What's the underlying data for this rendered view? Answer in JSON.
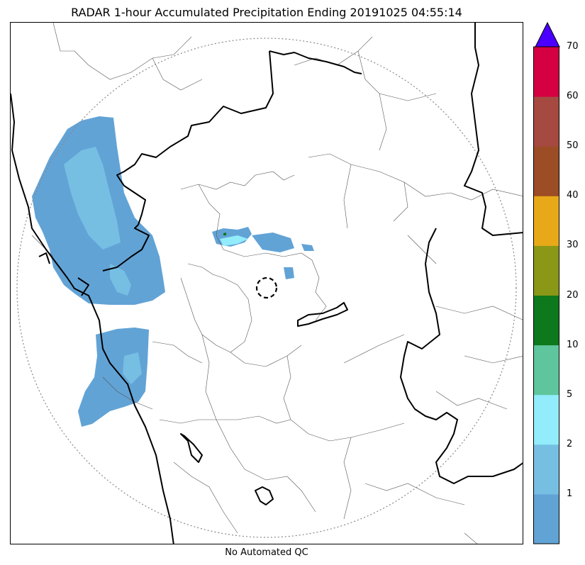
{
  "title": "RADAR 1-hour Accumulated Precipitation Ending 20191025 04:55:14",
  "footer": "No Automated QC",
  "colorbar": {
    "labels": [
      "1",
      "2",
      "5",
      "10",
      "20",
      "30",
      "40",
      "50",
      "60",
      "70"
    ],
    "segments": [
      {
        "range": "0-1",
        "color": "#62a3d6"
      },
      {
        "range": "1-2",
        "color": "#76bfe3"
      },
      {
        "range": "2-5",
        "color": "#92ecfb"
      },
      {
        "range": "5-10",
        "color": "#5ec59d"
      },
      {
        "range": "10-20",
        "color": "#0e781c"
      },
      {
        "range": "20-30",
        "color": "#8b9716"
      },
      {
        "range": "30-40",
        "color": "#e8a918"
      },
      {
        "range": "40-50",
        "color": "#9c4d25"
      },
      {
        "range": "50-60",
        "color": "#a64a41"
      },
      {
        "range": "60-70",
        "color": "#d50041"
      }
    ],
    "over_color": "#4b00ff"
  }
}
